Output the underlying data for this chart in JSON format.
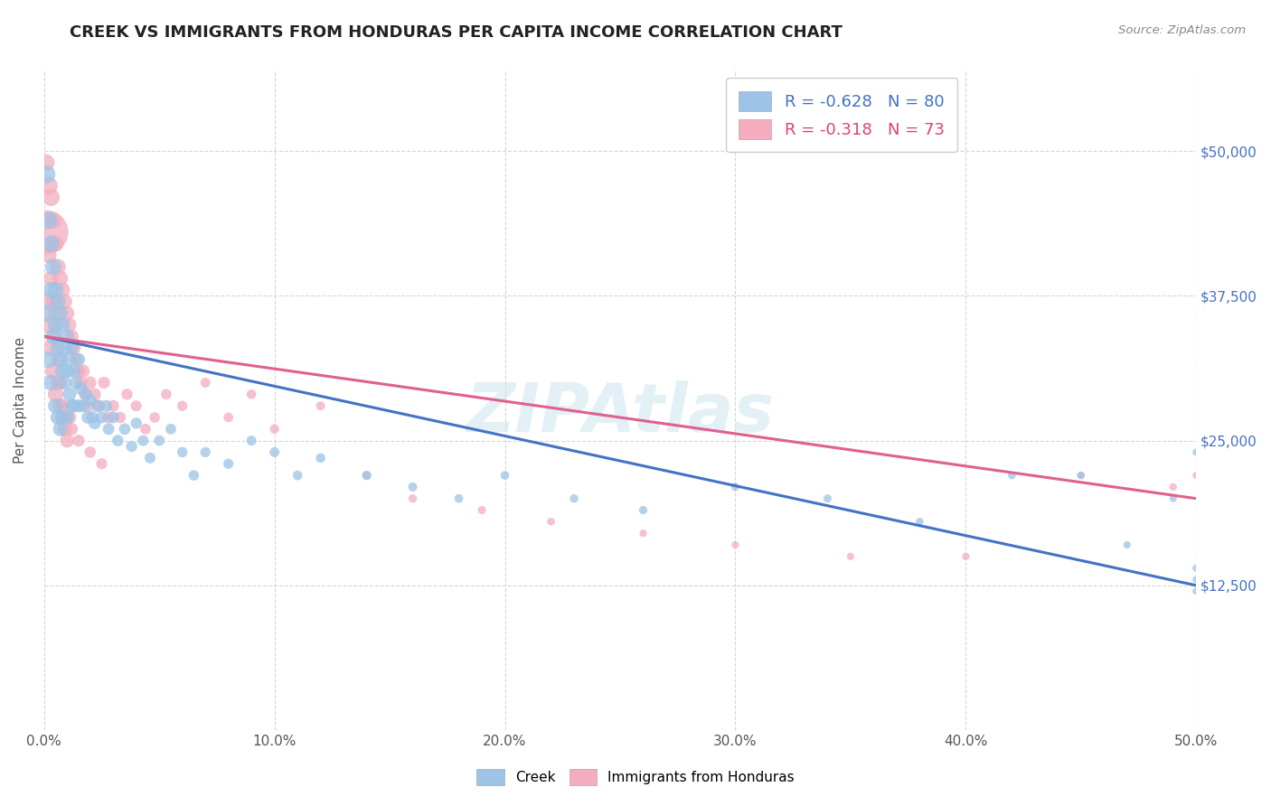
{
  "title": "CREEK VS IMMIGRANTS FROM HONDURAS PER CAPITA INCOME CORRELATION CHART",
  "source": "Source: ZipAtlas.com",
  "ylabel_label": "Per Capita Income",
  "xlim": [
    0.0,
    0.5
  ],
  "ylim": [
    0,
    57000
  ],
  "legend_r1": "R = -0.628   N = 80",
  "legend_r2": "R = -0.318   N = 73",
  "blue_color": "#9dc3e6",
  "pink_color": "#f4acbe",
  "line_blue": "#4472c4",
  "line_pink": "#e06090",
  "watermark": "ZIPAtlas",
  "bg_color": "#ffffff",
  "grid_color": "#cccccc",
  "title_color": "#222222",
  "axis_label_color": "#555555",
  "tick_color_right": "#4472c4",
  "tick_color_x": "#555555",
  "source_color": "#888888",
  "blue_intercept": 34000,
  "blue_slope": -43000,
  "pink_intercept": 34000,
  "pink_slope": -28000,
  "creek_x": [
    0.001,
    0.001,
    0.002,
    0.002,
    0.003,
    0.003,
    0.003,
    0.004,
    0.004,
    0.005,
    0.005,
    0.005,
    0.006,
    0.006,
    0.006,
    0.007,
    0.007,
    0.007,
    0.008,
    0.008,
    0.008,
    0.009,
    0.009,
    0.01,
    0.01,
    0.01,
    0.011,
    0.011,
    0.012,
    0.012,
    0.013,
    0.013,
    0.014,
    0.015,
    0.015,
    0.016,
    0.017,
    0.018,
    0.019,
    0.02,
    0.021,
    0.022,
    0.023,
    0.025,
    0.027,
    0.028,
    0.03,
    0.032,
    0.035,
    0.038,
    0.04,
    0.043,
    0.046,
    0.05,
    0.055,
    0.06,
    0.065,
    0.07,
    0.08,
    0.09,
    0.1,
    0.11,
    0.12,
    0.14,
    0.16,
    0.18,
    0.2,
    0.23,
    0.26,
    0.3,
    0.34,
    0.38,
    0.42,
    0.45,
    0.47,
    0.49,
    0.5,
    0.5,
    0.5,
    0.5
  ],
  "creek_y": [
    48000,
    36000,
    44000,
    32000,
    42000,
    38000,
    30000,
    40000,
    34000,
    38000,
    35000,
    28000,
    37000,
    33000,
    27000,
    36000,
    32000,
    26000,
    35000,
    31000,
    27000,
    33000,
    30000,
    34000,
    31000,
    27000,
    32000,
    29000,
    33000,
    28000,
    31000,
    28000,
    30000,
    32000,
    28000,
    29500,
    28000,
    29000,
    27000,
    28500,
    27000,
    26500,
    28000,
    27000,
    28000,
    26000,
    27000,
    25000,
    26000,
    24500,
    26500,
    25000,
    23500,
    25000,
    26000,
    24000,
    22000,
    24000,
    23000,
    25000,
    24000,
    22000,
    23500,
    22000,
    21000,
    20000,
    22000,
    20000,
    19000,
    21000,
    20000,
    18000,
    22000,
    22000,
    16000,
    20000,
    24000,
    14000,
    13000,
    12000
  ],
  "creek_sizes": [
    60,
    55,
    55,
    50,
    50,
    48,
    46,
    48,
    46,
    46,
    44,
    42,
    44,
    42,
    40,
    42,
    40,
    38,
    40,
    38,
    36,
    38,
    36,
    36,
    35,
    34,
    35,
    34,
    34,
    33,
    33,
    32,
    32,
    31,
    31,
    30,
    30,
    29,
    29,
    28,
    28,
    27,
    27,
    26,
    26,
    25,
    25,
    24,
    24,
    23,
    23,
    22,
    22,
    21,
    21,
    20,
    20,
    19,
    19,
    18,
    18,
    17,
    17,
    16,
    15,
    14,
    14,
    13,
    13,
    12,
    12,
    11,
    11,
    11,
    10,
    10,
    10,
    10,
    10,
    10
  ],
  "honduras_x": [
    0.001,
    0.001,
    0.002,
    0.002,
    0.003,
    0.003,
    0.004,
    0.004,
    0.005,
    0.005,
    0.005,
    0.006,
    0.006,
    0.007,
    0.007,
    0.008,
    0.008,
    0.009,
    0.009,
    0.01,
    0.01,
    0.011,
    0.011,
    0.012,
    0.013,
    0.014,
    0.015,
    0.016,
    0.017,
    0.018,
    0.019,
    0.02,
    0.022,
    0.024,
    0.026,
    0.028,
    0.03,
    0.033,
    0.036,
    0.04,
    0.044,
    0.048,
    0.053,
    0.06,
    0.07,
    0.08,
    0.09,
    0.1,
    0.12,
    0.14,
    0.16,
    0.19,
    0.22,
    0.26,
    0.3,
    0.35,
    0.4,
    0.45,
    0.49,
    0.5,
    0.001,
    0.002,
    0.003,
    0.004,
    0.005,
    0.006,
    0.007,
    0.008,
    0.01,
    0.012,
    0.015,
    0.02,
    0.025
  ],
  "honduras_y": [
    43000,
    37000,
    47000,
    35000,
    46000,
    33000,
    44000,
    31000,
    42000,
    36000,
    29000,
    40000,
    30000,
    39000,
    28000,
    38000,
    27000,
    37000,
    26000,
    36000,
    25000,
    35000,
    27000,
    34000,
    33000,
    32000,
    31000,
    30000,
    31000,
    29000,
    28000,
    30000,
    29000,
    28000,
    30000,
    27000,
    28000,
    27000,
    29000,
    28000,
    26000,
    27000,
    29000,
    28000,
    30000,
    27000,
    29000,
    26000,
    28000,
    22000,
    20000,
    19000,
    18000,
    17000,
    16000,
    15000,
    15000,
    22000,
    21000,
    22000,
    49000,
    41000,
    39000,
    37000,
    34000,
    32000,
    30000,
    28000,
    27000,
    26000,
    25000,
    24000,
    23000
  ],
  "honduras_sizes": [
    350,
    60,
    60,
    55,
    55,
    50,
    50,
    48,
    48,
    46,
    44,
    46,
    44,
    44,
    42,
    42,
    40,
    40,
    38,
    38,
    36,
    36,
    34,
    34,
    33,
    32,
    32,
    31,
    31,
    30,
    30,
    29,
    28,
    27,
    26,
    25,
    25,
    24,
    23,
    22,
    21,
    20,
    20,
    19,
    18,
    17,
    17,
    16,
    15,
    14,
    13,
    12,
    11,
    10,
    10,
    10,
    10,
    10,
    10,
    10,
    50,
    45,
    42,
    40,
    38,
    36,
    34,
    32,
    30,
    28,
    26,
    24,
    22
  ]
}
